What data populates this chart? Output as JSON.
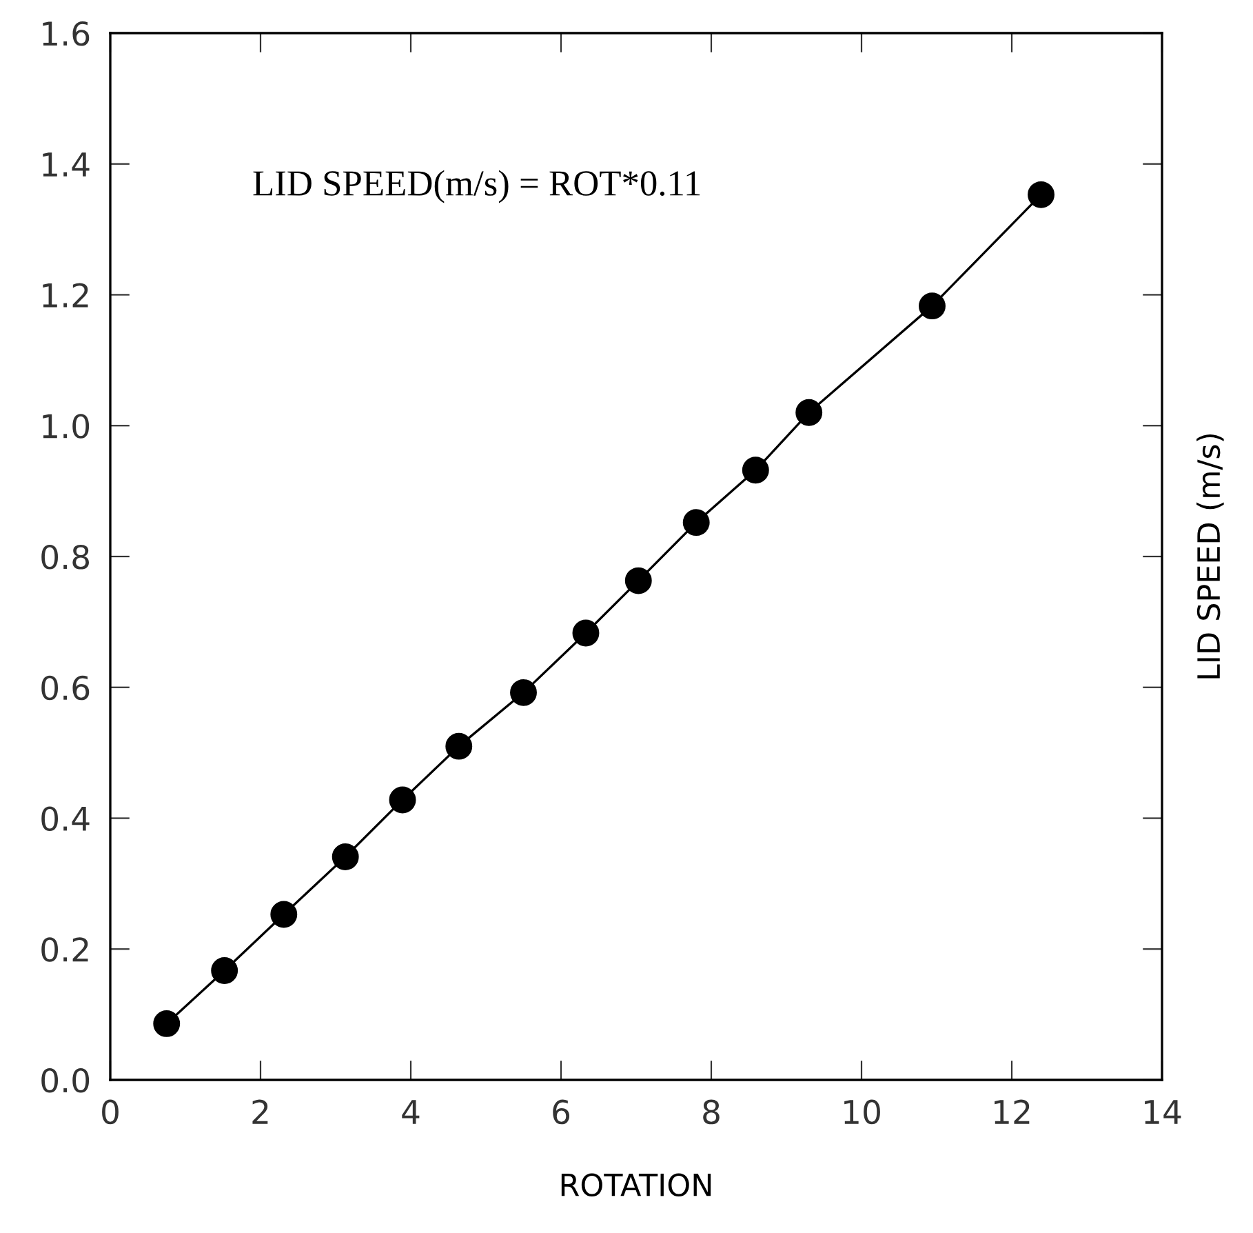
{
  "chart_data": {
    "type": "line",
    "xlabel": "ROTATION",
    "ylabel": "LID SPEED (m/s)",
    "annotations": [
      "LID SPEED(m/s) = ROT*0.11"
    ],
    "x": [
      0.75,
      1.52,
      2.31,
      3.13,
      3.89,
      4.64,
      5.5,
      6.33,
      7.03,
      7.8,
      8.59,
      9.3,
      10.94,
      12.39
    ],
    "series": [
      {
        "color": "#000000",
        "values": [
          0.086,
          0.167,
          0.253,
          0.341,
          0.428,
          0.51,
          0.592,
          0.683,
          0.763,
          0.852,
          0.932,
          1.02,
          1.183,
          1.353
        ]
      }
    ],
    "xlim": [
      0,
      14
    ],
    "xticks": [
      0,
      2,
      4,
      6,
      8,
      10,
      12,
      14
    ],
    "ylim": [
      0,
      1.6
    ],
    "yticks": [
      {
        "value": 0,
        "label": "0.0"
      },
      {
        "value": 0.2,
        "label": "0.2"
      },
      {
        "value": 0.4,
        "label": "0.4"
      },
      {
        "value": 0.6,
        "label": "0.6"
      },
      {
        "value": 0.8,
        "label": "0.8"
      },
      {
        "value": 1.0,
        "label": "1.0"
      },
      {
        "value": 1.2,
        "label": "1.2"
      },
      {
        "value": 1.4,
        "label": "1.4"
      },
      {
        "value": 1.6,
        "label": "1.6"
      }
    ],
    "grid": false,
    "legend": false,
    "marker": "circle",
    "line_style": "solid"
  }
}
